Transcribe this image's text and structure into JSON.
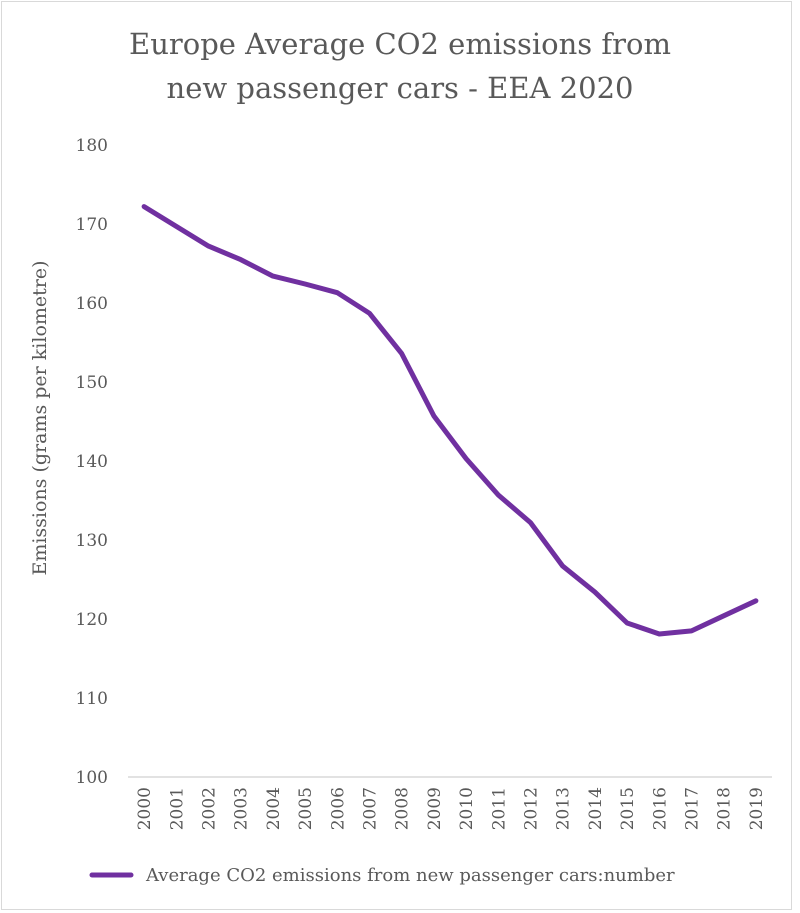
{
  "chart_data": {
    "type": "line",
    "title_lines": [
      "Europe Average CO2 emissions from",
      "new passenger cars - EEA 2020"
    ],
    "title": "Europe Average CO2 emissions from new passenger cars - EEA 2020",
    "xlabel": "",
    "ylabel": "Emissions (grams per kilometre)",
    "categories": [
      "2000",
      "2001",
      "2002",
      "2003",
      "2004",
      "2005",
      "2006",
      "2007",
      "2008",
      "2009",
      "2010",
      "2011",
      "2012",
      "2013",
      "2014",
      "2015",
      "2016",
      "2017",
      "2018",
      "2019"
    ],
    "series": [
      {
        "name": "Average CO2 emissions from new passenger cars:number",
        "color": "#7030a0",
        "values": [
          172.2,
          169.7,
          167.2,
          165.5,
          163.4,
          162.4,
          161.3,
          158.7,
          153.6,
          145.7,
          140.3,
          135.7,
          132.2,
          126.7,
          123.4,
          119.5,
          118.1,
          118.5,
          120.4,
          122.3
        ]
      }
    ],
    "ylim": [
      100,
      180
    ],
    "yticks": [
      100,
      110,
      120,
      130,
      140,
      150,
      160,
      170,
      180
    ],
    "grid": false,
    "legend_position": "bottom"
  }
}
